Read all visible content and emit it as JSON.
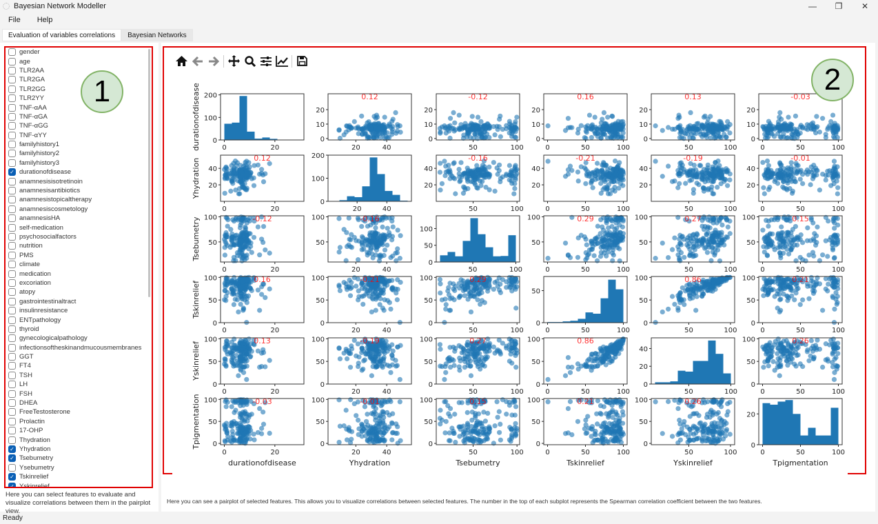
{
  "window": {
    "title": "Bayesian Network Modeller",
    "controls": [
      "—",
      "❐",
      "✕"
    ]
  },
  "menu": [
    "File",
    "Help"
  ],
  "tabs": [
    {
      "label": "Evaluation of variables correlations",
      "active": true
    },
    {
      "label": "Bayesian Networks",
      "active": false
    }
  ],
  "sidebar": {
    "items": [
      {
        "label": "gender",
        "checked": false
      },
      {
        "label": "age",
        "checked": false
      },
      {
        "label": "TLR2AA",
        "checked": false
      },
      {
        "label": "TLR2GA",
        "checked": false
      },
      {
        "label": "TLR2GG",
        "checked": false
      },
      {
        "label": "TLR2YY",
        "checked": false
      },
      {
        "label": "TNF-αAA",
        "checked": false
      },
      {
        "label": "TNF-αGA",
        "checked": false
      },
      {
        "label": "TNF-αGG",
        "checked": false
      },
      {
        "label": "TNF-αYY",
        "checked": false
      },
      {
        "label": "familyhistory1",
        "checked": false
      },
      {
        "label": "familyhistory2",
        "checked": false
      },
      {
        "label": "familyhistory3",
        "checked": false
      },
      {
        "label": "durationofdisease",
        "checked": true
      },
      {
        "label": "anamnesisisotretinoin",
        "checked": false
      },
      {
        "label": "anamnesisantibiotics",
        "checked": false
      },
      {
        "label": "anamnesistopicaltherapy",
        "checked": false
      },
      {
        "label": "anamnesiscosmetology",
        "checked": false
      },
      {
        "label": "anamnesisHA",
        "checked": false
      },
      {
        "label": "self-medication",
        "checked": false
      },
      {
        "label": "psychosocialfactors",
        "checked": false
      },
      {
        "label": "nutrition",
        "checked": false
      },
      {
        "label": "PMS",
        "checked": false
      },
      {
        "label": "climate",
        "checked": false
      },
      {
        "label": "medication",
        "checked": false
      },
      {
        "label": "excoriation",
        "checked": false
      },
      {
        "label": "atopy",
        "checked": false
      },
      {
        "label": "gastrointestinaltract",
        "checked": false
      },
      {
        "label": "insulinresistance",
        "checked": false
      },
      {
        "label": "ENTpathology",
        "checked": false
      },
      {
        "label": "thyroid",
        "checked": false
      },
      {
        "label": "gynecologicalpathology",
        "checked": false
      },
      {
        "label": "infectionsoftheskinandmucousmembranes",
        "checked": false
      },
      {
        "label": "GGT",
        "checked": false
      },
      {
        "label": "FT4",
        "checked": false
      },
      {
        "label": "TSH",
        "checked": false
      },
      {
        "label": "LH",
        "checked": false
      },
      {
        "label": "FSH",
        "checked": false
      },
      {
        "label": "DHEA",
        "checked": false
      },
      {
        "label": "FreeTestosterone",
        "checked": false
      },
      {
        "label": "Prolactin",
        "checked": false
      },
      {
        "label": "17-OHP",
        "checked": false
      },
      {
        "label": "Thydration",
        "checked": false
      },
      {
        "label": "Yhydration",
        "checked": true
      },
      {
        "label": "Tsebumetry",
        "checked": true
      },
      {
        "label": "Ysebumetry",
        "checked": false
      },
      {
        "label": "Tskinrelief",
        "checked": true
      },
      {
        "label": "Yskinrelief",
        "checked": true
      }
    ],
    "description": "Here you can select features to evaluate and visualize correlations between them in the pairplot view."
  },
  "toolbar": [
    "home-icon",
    "back-arrow-icon",
    "forward-arrow-icon",
    "pan-icon",
    "zoom-icon",
    "configure-subplots-icon",
    "edit-axes-icon",
    "save-icon"
  ],
  "annotations": [
    "1",
    "2"
  ],
  "figure_description": "Here you can see a pairplot of selected features. This allows you to visualize correlations between selected features. The number in the top of each subplot represents the Spearman correlation coefficient between the two features.",
  "status": "Ready",
  "chart_data": {
    "type": "scatter",
    "layout": "pairplot",
    "point_color": "#1f77b4",
    "annotation_color": "#ff0000",
    "variables": [
      "durationofdisease",
      "Yhydration",
      "Tsebumetry",
      "Tskinrelief",
      "Yskinrelief",
      "Tpigmentation"
    ],
    "axes": [
      {
        "range": [
          -1.5,
          31.5
        ],
        "ticks": [
          0,
          20
        ]
      },
      {
        "range": [
          2,
          56
        ],
        "ticks": [
          20,
          40
        ]
      },
      {
        "range": [
          8,
          103
        ],
        "ticks": [
          50,
          100
        ]
      },
      {
        "range": [
          -5,
          105
        ],
        "ticks": [
          0,
          50,
          100
        ]
      },
      {
        "range": [
          5,
          105
        ],
        "ticks": [
          50,
          100
        ]
      },
      {
        "range": [
          -5,
          105
        ],
        "ticks": [
          0,
          50,
          100
        ]
      }
    ],
    "value_axes": [
      {
        "range": [
          -1,
          31
        ],
        "ticks": [
          0,
          10,
          20
        ]
      },
      {
        "range": [
          0,
          56
        ],
        "ticks": [
          20,
          40
        ]
      },
      {
        "range": [
          10,
          102
        ],
        "ticks": [
          50,
          100
        ]
      },
      {
        "range": [
          0,
          102
        ],
        "ticks": [
          0,
          50,
          100
        ]
      },
      {
        "range": [
          0,
          102
        ],
        "ticks": [
          0,
          50,
          100
        ]
      },
      {
        "range": [
          -3,
          102
        ],
        "ticks": [
          0,
          50,
          100
        ]
      }
    ],
    "histograms": [
      {
        "range": [
          0,
          30
        ],
        "counts": [
          72,
          77,
          195,
          37,
          6,
          11,
          5,
          1,
          1,
          1
        ],
        "ylim": [
          0,
          205
        ],
        "yticks": [
          0,
          100,
          200
        ]
      },
      {
        "range": [
          3,
          54
        ],
        "counts": [
          1,
          5,
          22,
          18,
          65,
          190,
          118,
          45,
          28,
          3
        ],
        "ylim": [
          0,
          200
        ],
        "yticks": [
          0,
          100,
          200
        ]
      },
      {
        "range": [
          12,
          100
        ],
        "counts": [
          20,
          30,
          17,
          63,
          131,
          83,
          44,
          17,
          18,
          80
        ],
        "ylim": [
          0,
          138
        ],
        "yticks": [
          0,
          50,
          100
        ]
      },
      {
        "range": [
          0,
          100
        ],
        "counts": [
          1,
          1,
          2,
          3,
          6,
          16,
          14,
          38,
          67,
          52
        ],
        "ylim": [
          0,
          72
        ],
        "yticks": [
          0,
          50
        ]
      },
      {
        "range": [
          10,
          100
        ],
        "counts": [
          2,
          2,
          3,
          15,
          14,
          26,
          26,
          49,
          34,
          12
        ],
        "ylim": [
          0,
          52
        ],
        "yticks": [
          0,
          20,
          40
        ]
      },
      {
        "range": [
          0,
          100
        ],
        "counts": [
          27,
          26,
          28,
          29,
          20,
          6,
          11,
          6,
          6,
          24
        ],
        "ylim": [
          0,
          30
        ],
        "yticks": [
          0,
          20
        ]
      }
    ],
    "spearman": [
      [
        null,
        0.12,
        -0.12,
        0.16,
        0.13,
        -0.03
      ],
      [
        0.12,
        null,
        -0.16,
        -0.21,
        -0.19,
        -0.01
      ],
      [
        -0.12,
        -0.16,
        null,
        0.29,
        0.27,
        0.15
      ],
      [
        0.16,
        -0.21,
        0.29,
        null,
        0.86,
        0.21
      ],
      [
        0.13,
        -0.19,
        0.27,
        0.86,
        null,
        0.26
      ],
      [
        -0.03,
        -0.01,
        0.15,
        0.21,
        0.26,
        null
      ]
    ]
  }
}
